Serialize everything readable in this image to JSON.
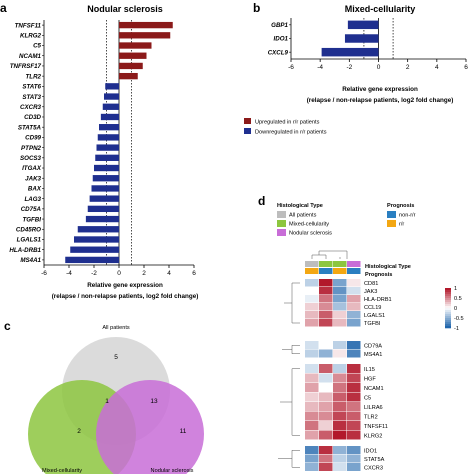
{
  "panels": {
    "a": "a",
    "b": "b",
    "c": "c",
    "d": "d"
  },
  "colors": {
    "up": "#8b1a1a",
    "down": "#1f2f8f",
    "venn_all": "#bdbdbd",
    "venn_mixed": "#8dc63f",
    "venn_ns": "#c86dd7",
    "mixed": "#8dc63f",
    "ns": "#c86dd7",
    "all": "#bdbdbd",
    "non_rr": "#2a7fc1",
    "rr": "#f3a712"
  },
  "chart_data": [
    {
      "type": "bar",
      "orientation": "horizontal",
      "title": "Nodular sclerosis",
      "xlabel": "Relative gene expression",
      "xlabel2": "(relapse / non-relapse patients, log2 fold change)",
      "xlim": [
        -6,
        6
      ],
      "xticks": [
        -6,
        -4,
        -2,
        0,
        2,
        4,
        6
      ],
      "threshold_lines": [
        -1,
        1
      ],
      "categories": [
        "TNFSF11",
        "KLRG2",
        "C5",
        "NCAM1",
        "TNFRSF17",
        "TLR2",
        "STAT6",
        "STAT3",
        "CXCR3",
        "CD3D",
        "STAT5A",
        "CD99",
        "PTPN2",
        "SOCS3",
        "ITGAX",
        "JAK3",
        "BAX",
        "LAG3",
        "CD75A",
        "TGFBI",
        "CD45RO",
        "LGALS1",
        "HLA-DRB1",
        "MS4A1"
      ],
      "values": [
        4.3,
        4.1,
        2.6,
        2.2,
        1.9,
        1.5,
        -1.1,
        -1.2,
        -1.3,
        -1.45,
        -1.6,
        -1.7,
        -1.8,
        -1.9,
        -2.0,
        -2.1,
        -2.2,
        -2.35,
        -2.5,
        -2.65,
        -3.3,
        -3.6,
        -3.9,
        -4.3
      ]
    },
    {
      "type": "bar",
      "orientation": "horizontal",
      "title": "Mixed-cellularity",
      "xlabel": "Relative gene expression",
      "xlabel2": "(relapse / non-relapse patients, log2 fold change)",
      "xlim": [
        -6,
        6
      ],
      "xticks": [
        -6,
        -4,
        -2,
        0,
        2,
        4,
        6
      ],
      "threshold_lines": [
        -1,
        1
      ],
      "categories": [
        "GBP1",
        "IDO1",
        "CXCL9"
      ],
      "values": [
        -2.1,
        -2.3,
        -3.9
      ]
    }
  ],
  "legend_b": {
    "up": "Upregulated in r/r patients",
    "down": "Downregulated in r/r patients"
  },
  "venn": {
    "title": "All patients",
    "all_only": "5",
    "center_top": "1",
    "all_ns": "13",
    "mixed_only": "2",
    "ns_only": "11",
    "mixed_label": "Mixed-cellularity",
    "ns_label": "Nodular sclerosis"
  },
  "heatmap": {
    "legend_type_title": "Histological Type",
    "legend_type_items": [
      "All patients",
      "Mixed-cellularity",
      "Nodular sclerosis"
    ],
    "legend_prog_title": "Prognosis",
    "legend_prog_items": [
      "non-r/r",
      "r/r"
    ],
    "ann_type": "Histological Type",
    "ann_prog": "Prognosis",
    "scale_ticks": [
      "1",
      "0.5",
      "0",
      "-0.5",
      "-1"
    ],
    "block1": [
      "CD81",
      "JAK3",
      "HLA-DRB1",
      "CCL19",
      "LGALS1",
      "TGFBI"
    ],
    "block2": [
      "CD79A",
      "MS4A1"
    ],
    "block3": [
      "IL15",
      "HGF",
      "NCAM1",
      "C5",
      "LILRA6",
      "TLR2",
      "TNFSF11",
      "KLRG2"
    ],
    "block4": [
      "IDO1",
      "STAT5A",
      "CXCR3"
    ]
  }
}
